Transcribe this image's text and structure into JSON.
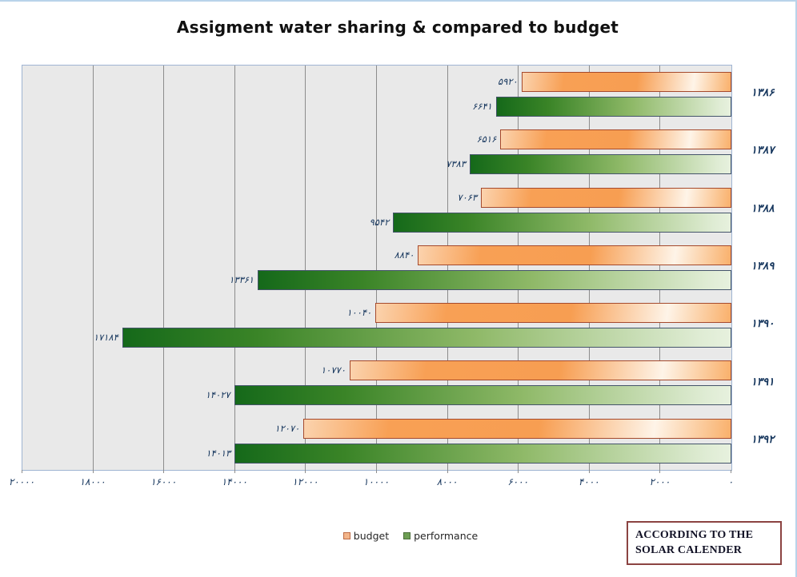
{
  "title": "Assigment water sharing & compared to budget",
  "chart_data": {
    "type": "bar",
    "orientation": "horizontal-right-to-left",
    "title": "Assigment water sharing & compared to budget",
    "categories": [
      "1386",
      "1387",
      "1388",
      "1389",
      "1390",
      "1391",
      "1392"
    ],
    "categories_fa": [
      "۱۳۸۶",
      "۱۳۸۷",
      "۱۳۸۸",
      "۱۳۸۹",
      "۱۳۹۰",
      "۱۳۹۱",
      "۱۳۹۲"
    ],
    "series": [
      {
        "name": "budget",
        "color": "#f8a055",
        "border_color": "#a5492c",
        "values": [
          5920,
          6516,
          7063,
          8840,
          10040,
          10770,
          12070
        ],
        "labels_fa": [
          "۵۹۲۰",
          "۶۵۱۶",
          "۷۰۶۳",
          "۸۸۴۰",
          "۱۰۰۴۰",
          "۱۰۷۷۰",
          "۱۲۰۷۰"
        ]
      },
      {
        "name": "performance",
        "color": "#2e7d1e",
        "border_color": "#44546a",
        "values": [
          6641,
          7383,
          9542,
          13361,
          17184,
          14027,
          14013
        ],
        "labels_fa": [
          "۶۶۴۱",
          "۷۳۸۳",
          "۹۵۴۲",
          "۱۳۳۶۱",
          "۱۷۱۸۴",
          "۱۴۰۲۷",
          "۱۴۰۱۳"
        ]
      }
    ],
    "xlim": [
      0,
      20000
    ],
    "x_ticks": [
      20000,
      18000,
      16000,
      14000,
      12000,
      10000,
      8000,
      6000,
      4000,
      2000,
      0
    ],
    "x_ticks_fa": [
      "۲۰۰۰۰",
      "۱۸۰۰۰",
      "۱۶۰۰۰",
      "۱۴۰۰۰",
      "۱۲۰۰۰",
      "۱۰۰۰۰",
      "۸۰۰۰",
      "۶۰۰۰",
      "۴۰۰۰",
      "۲۰۰۰",
      "۰"
    ],
    "grid": true,
    "plot_background": "#e9e9e9",
    "gridline_color": "#8c8c8c",
    "plot_border_color": "#9fb4d2",
    "legend_position": "bottom"
  },
  "note_box": {
    "line1": "ACCORDING TO THE",
    "line2": "SOLAR CALENDER",
    "border_color": "#8b4341"
  }
}
